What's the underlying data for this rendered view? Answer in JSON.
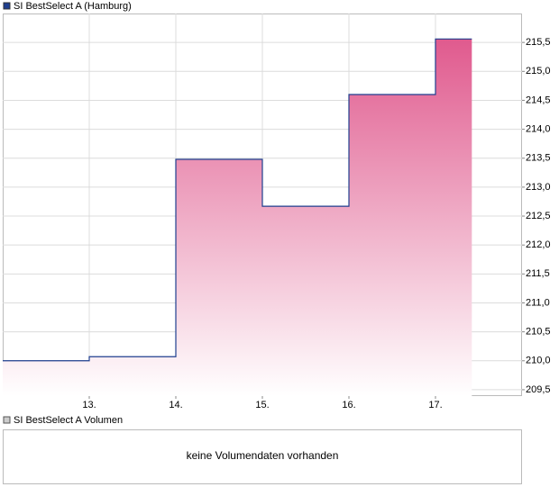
{
  "chart_data": {
    "type": "line",
    "x": [
      12,
      13,
      13,
      14,
      14,
      15,
      15,
      16,
      16,
      17,
      17,
      17.42
    ],
    "series": [
      {
        "name": "SI BestSelect A (Hamburg)",
        "color": "#1f3f8f",
        "values": [
          210.0,
          210.0,
          210.07,
          210.07,
          213.48,
          213.48,
          212.67,
          212.67,
          214.6,
          214.6,
          215.56,
          215.56
        ]
      }
    ],
    "fill_top": "#e05a8e",
    "fill_bottom": "#ffffff",
    "xlim": [
      12,
      18
    ],
    "xticks": [
      {
        "value": 13,
        "label": "13."
      },
      {
        "value": 14,
        "label": "14."
      },
      {
        "value": 15,
        "label": "15."
      },
      {
        "value": 16,
        "label": "16."
      },
      {
        "value": 17,
        "label": "17."
      }
    ],
    "ylim": [
      209.39,
      216.0
    ],
    "yticks": [
      {
        "value": 209.5,
        "label": "209,5"
      },
      {
        "value": 210.0,
        "label": "210,0"
      },
      {
        "value": 210.5,
        "label": "210,5"
      },
      {
        "value": 211.0,
        "label": "211,0"
      },
      {
        "value": 211.5,
        "label": "211,5"
      },
      {
        "value": 212.0,
        "label": "212,0"
      },
      {
        "value": 212.5,
        "label": "212,5"
      },
      {
        "value": 213.0,
        "label": "213,0"
      },
      {
        "value": 213.5,
        "label": "213,5"
      },
      {
        "value": 214.0,
        "label": "214,0"
      },
      {
        "value": 214.5,
        "label": "214,5"
      },
      {
        "value": 215.0,
        "label": "215,0"
      },
      {
        "value": 215.5,
        "label": "215,5"
      }
    ],
    "grid": true
  },
  "volume_panel": {
    "legend": "SI BestSelect A Volumen",
    "message": "keine Volumendaten vorhanden"
  }
}
